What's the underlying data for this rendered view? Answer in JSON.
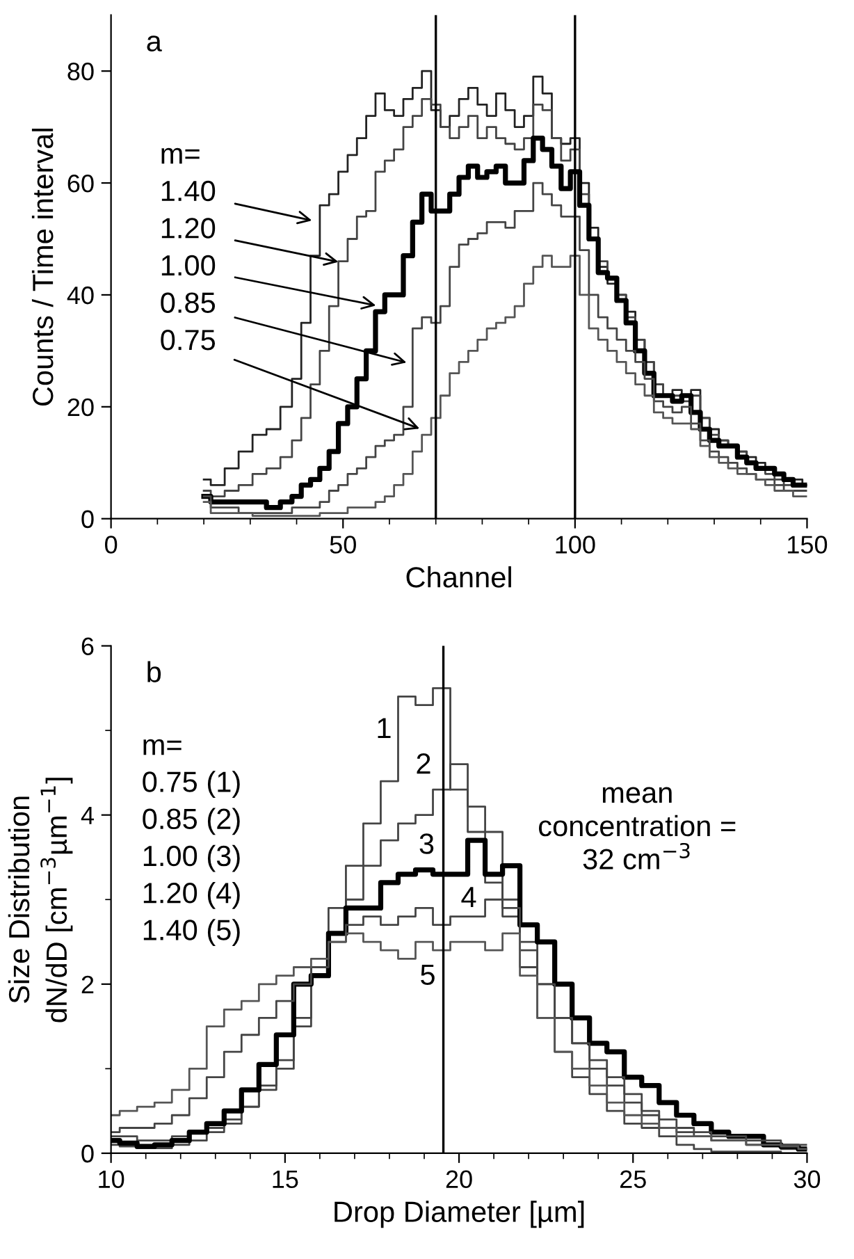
{
  "chart_data": [
    {
      "type": "step",
      "title": "a",
      "xlabel": "Channel",
      "ylabel": "Counts / Time interval",
      "x": [
        20,
        23,
        26,
        29,
        32,
        35,
        38,
        40,
        42,
        44,
        46,
        48,
        50,
        52,
        54,
        56,
        58,
        60,
        62,
        64,
        66,
        68,
        70,
        72,
        74,
        76,
        78,
        80,
        82,
        84,
        86,
        88,
        90,
        92,
        94,
        96,
        98,
        100,
        102,
        104,
        106,
        108,
        110,
        112,
        114,
        116,
        118,
        120,
        122,
        124,
        126,
        128,
        130,
        132,
        134,
        136,
        138,
        140,
        142,
        144,
        146,
        148,
        150
      ],
      "series": [
        {
          "color": "#222222",
          "values": [
            7,
            6,
            9,
            12,
            15,
            16,
            20,
            25,
            35,
            47,
            56,
            58,
            62,
            65,
            68,
            72,
            76,
            73,
            72,
            75,
            77,
            80,
            73,
            70,
            72,
            75,
            77,
            74,
            72,
            76,
            73,
            70,
            72,
            79,
            76,
            68,
            67,
            68,
            60,
            52,
            45,
            42,
            40,
            37,
            32,
            28,
            24,
            22,
            23,
            22,
            23,
            18,
            16,
            14,
            13,
            12,
            11,
            10,
            9,
            8,
            7,
            7,
            6
          ]
        },
        {
          "color": "#444444",
          "values": [
            5,
            4,
            5,
            6,
            8,
            9,
            11,
            14,
            18,
            24,
            30,
            38,
            46,
            50,
            54,
            55,
            62,
            64,
            66,
            70,
            72,
            75,
            74,
            70,
            68,
            70,
            72,
            68,
            70,
            68,
            67,
            66,
            68,
            74,
            73,
            68,
            64,
            66,
            58,
            50,
            46,
            43,
            40,
            36,
            32,
            28,
            24,
            22,
            22,
            21,
            22,
            18,
            15,
            14,
            13,
            12,
            10,
            9,
            8,
            7,
            6,
            6,
            6
          ]
        },
        {
          "color": "#000000",
          "values": [
            4,
            3,
            3,
            3,
            3,
            2,
            3,
            4,
            6,
            7,
            9,
            12,
            17,
            20,
            25,
            30,
            37,
            40,
            40,
            47,
            53,
            58,
            55,
            55,
            58,
            61,
            63,
            61,
            62,
            63,
            60,
            60,
            64,
            68,
            66,
            63,
            59,
            62,
            56,
            50,
            44,
            43,
            39,
            35,
            30,
            26,
            22,
            22,
            21,
            22,
            19,
            16,
            14,
            13,
            13,
            11,
            10,
            9,
            9,
            8,
            7,
            6,
            6
          ]
        },
        {
          "color": "#444444",
          "values": [
            4,
            2,
            2,
            1,
            1,
            1,
            1,
            2,
            2,
            2,
            3,
            5,
            6,
            8,
            9,
            11,
            13,
            14,
            15,
            20,
            34,
            36,
            35,
            38,
            45,
            49,
            50,
            51,
            53,
            53,
            52,
            55,
            55,
            60,
            58,
            56,
            54,
            54,
            48,
            40,
            36,
            34,
            32,
            30,
            28,
            25,
            21,
            20,
            19,
            20,
            17,
            14,
            12,
            11,
            10,
            9,
            8,
            7,
            7,
            6,
            5,
            5,
            5
          ]
        },
        {
          "color": "#555555",
          "values": [
            3,
            1,
            1,
            1,
            0.5,
            0.5,
            0.5,
            0.5,
            0.5,
            0.5,
            1,
            1,
            1,
            2,
            2,
            2,
            3,
            4,
            6,
            8,
            12,
            15,
            18,
            22,
            26,
            28,
            30,
            32,
            34,
            35,
            36,
            38,
            42,
            45,
            47,
            45,
            45,
            47,
            40,
            34,
            32,
            30,
            28,
            26,
            24,
            22,
            19,
            18,
            17,
            17,
            16,
            13,
            11,
            10,
            9,
            8,
            8,
            7,
            6,
            5,
            5,
            4,
            4
          ]
        }
      ],
      "xlim": [
        0,
        150
      ],
      "ylim": [
        0,
        90
      ],
      "xticks": [
        0,
        {
          "value": 10,
          "label": null
        },
        {
          "value": 20,
          "label": null
        },
        {
          "value": 30,
          "label": null
        },
        {
          "value": 40,
          "label": null
        },
        50,
        {
          "value": 60,
          "label": null
        },
        {
          "value": 70,
          "label": null
        },
        {
          "value": 80,
          "label": null
        },
        {
          "value": 90,
          "label": null
        },
        100,
        {
          "value": 110,
          "label": null
        },
        {
          "value": 120,
          "label": null
        },
        {
          "value": 130,
          "label": null
        },
        {
          "value": 140,
          "label": null
        },
        150
      ],
      "yticks": [
        0,
        20,
        40,
        60,
        80
      ],
      "ref_lines": [
        {
          "axis": "x",
          "value": 70,
          "color": "#000000"
        },
        {
          "axis": "x",
          "value": 100,
          "color": "#000000"
        }
      ],
      "annotations": [
        "m=",
        {
          "text": "1.40",
          "x": 43.3,
          "y": 53.3
        },
        {
          "text": "1.20",
          "x": 49.0,
          "y": 45.9
        },
        {
          "text": "1.00",
          "x": 57.1,
          "y": 38.1
        },
        {
          "text": "0.85",
          "x": 63.7,
          "y": 27.9
        },
        {
          "text": "0.75",
          "x": 66.5,
          "y": 16.1
        }
      ],
      "grid": false,
      "legend": false
    },
    {
      "type": "step",
      "title": "b",
      "xlabel": "Drop Diameter [µm]",
      "ylabel": "Size Distribution\ndN/dD [cm$^{−3}$µm$^{−1}$]",
      "x": [
        10,
        10.5,
        11,
        11.5,
        12,
        12.5,
        13,
        13.5,
        14,
        14.5,
        15,
        15.5,
        16,
        16.5,
        17,
        17.5,
        18,
        18.5,
        19,
        19.5,
        20,
        20.5,
        21,
        21.5,
        22,
        22.5,
        23,
        23.5,
        24,
        24.5,
        25,
        25.5,
        26,
        26.5,
        27,
        27.5,
        28,
        28.5,
        29,
        29.5,
        30
      ],
      "series": [
        {
          "color": "#444444",
          "values": [
            0.2,
            0.2,
            0.15,
            0.15,
            0.2,
            0.25,
            0.3,
            0.4,
            0.55,
            0.75,
            1.0,
            1.5,
            2.2,
            2.9,
            3.4,
            3.9,
            4.4,
            5.4,
            5.3,
            5.5,
            4.3,
            3.8,
            3.2,
            2.8,
            2.2,
            1.6,
            1.2,
            0.9,
            0.7,
            0.5,
            0.35,
            0.3,
            0.2,
            0.1,
            0.05,
            0.02,
            0.02,
            0.02,
            0.02,
            0,
            0
          ]
        },
        {
          "color": "#444444",
          "values": [
            0.1,
            0.08,
            0.06,
            0.06,
            0.1,
            0.15,
            0.25,
            0.35,
            0.55,
            0.8,
            1.1,
            1.6,
            2.2,
            2.6,
            3.0,
            3.4,
            3.7,
            3.9,
            4.0,
            4.3,
            4.6,
            4.1,
            3.8,
            3.0,
            2.5,
            2.0,
            1.6,
            1.3,
            1.0,
            0.8,
            0.6,
            0.45,
            0.3,
            0.25,
            0.2,
            0.15,
            0.15,
            0.1,
            0.1,
            0.05,
            0.05
          ]
        },
        {
          "color": "#000000",
          "values": [
            0.15,
            0.12,
            0.08,
            0.1,
            0.15,
            0.25,
            0.35,
            0.5,
            0.75,
            1.05,
            1.4,
            2.0,
            2.1,
            2.6,
            2.9,
            2.9,
            3.2,
            3.3,
            3.35,
            3.3,
            3.3,
            3.7,
            3.3,
            3.4,
            2.7,
            2.5,
            2.0,
            1.6,
            1.3,
            1.2,
            0.9,
            0.8,
            0.6,
            0.45,
            0.35,
            0.25,
            0.2,
            0.2,
            0.1,
            0.08,
            0.05
          ]
        },
        {
          "color": "#444444",
          "values": [
            0.25,
            0.3,
            0.3,
            0.35,
            0.45,
            0.65,
            0.9,
            1.2,
            1.4,
            1.6,
            1.8,
            2.0,
            2.2,
            2.5,
            2.7,
            2.8,
            2.7,
            2.8,
            2.9,
            2.7,
            2.8,
            2.8,
            3.0,
            2.9,
            2.4,
            2.0,
            1.6,
            1.3,
            1.1,
            0.9,
            0.7,
            0.5,
            0.4,
            0.3,
            0.25,
            0.2,
            0.2,
            0.15,
            0.15,
            0.1,
            0.1
          ]
        },
        {
          "color": "#555555",
          "values": [
            0.45,
            0.5,
            0.55,
            0.6,
            0.75,
            1.0,
            1.5,
            1.7,
            1.8,
            2.0,
            2.1,
            2.2,
            2.3,
            2.5,
            2.6,
            2.5,
            2.4,
            2.3,
            2.5,
            2.4,
            2.5,
            2.5,
            2.4,
            2.6,
            2.1,
            1.6,
            1.2,
            1.0,
            0.8,
            0.6,
            0.45,
            0.35,
            0.3,
            0.2,
            0.2,
            0.15,
            0.15,
            0.1,
            0.1,
            0.08,
            0.05
          ]
        }
      ],
      "xlim": [
        10,
        30
      ],
      "ylim": [
        0,
        6
      ],
      "xticks": [
        10,
        {
          "value": 11,
          "label": null
        },
        {
          "value": 12,
          "label": null
        },
        {
          "value": 13,
          "label": null
        },
        {
          "value": 14,
          "label": null
        },
        15,
        {
          "value": 16,
          "label": null
        },
        {
          "value": 17,
          "label": null
        },
        {
          "value": 18,
          "label": null
        },
        {
          "value": 19,
          "label": null
        },
        20,
        {
          "value": 21,
          "label": null
        },
        {
          "value": 22,
          "label": null
        },
        {
          "value": 23,
          "label": null
        },
        {
          "value": 24,
          "label": null
        },
        25,
        {
          "value": 26,
          "label": null
        },
        {
          "value": 27,
          "label": null
        },
        {
          "value": 28,
          "label": null
        },
        {
          "value": 29,
          "label": null
        },
        30
      ],
      "yticks": [
        0,
        {
          "value": 1,
          "label": null
        },
        2,
        {
          "value": 3,
          "label": null
        },
        4,
        {
          "value": 5,
          "label": null
        },
        6
      ],
      "ref_lines": [
        {
          "axis": "x",
          "value": 19.55,
          "color": "#000000"
        }
      ],
      "annotations": [
        "m=",
        "0.75 (1)",
        "0.85 (2)",
        "1.00 (3)",
        "1.20 (4)",
        "1.40 (5)",
        "mean\nconcentration =\n32 cm$^{−3}$",
        "1",
        "2",
        "3",
        "4",
        "5"
      ],
      "grid": false,
      "legend": false
    }
  ]
}
